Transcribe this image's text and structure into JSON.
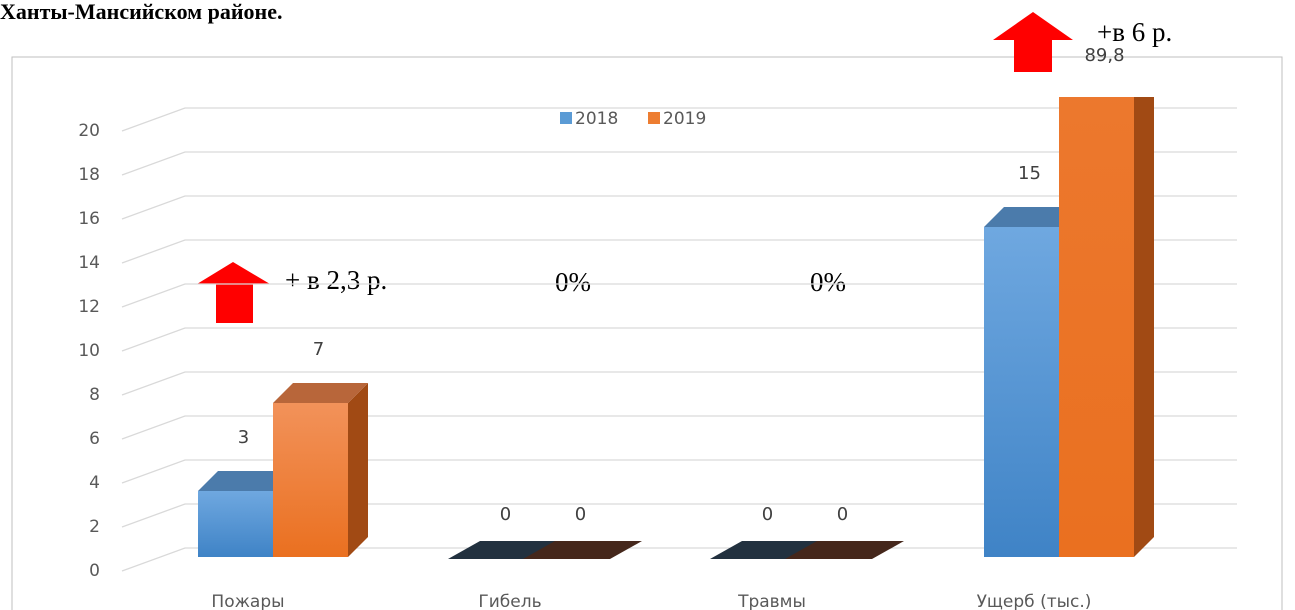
{
  "chart_data": {
    "type": "bar3d",
    "title": "Ханты-Мансийском районе.",
    "categories": [
      "Пожары",
      "Гибель",
      "Травмы",
      "Ущерб (тыс.)"
    ],
    "series": [
      {
        "name": "2018",
        "color": "#5b9bd5",
        "values": [
          3,
          0,
          0,
          15
        ],
        "value_labels": [
          "3",
          "0",
          "0",
          "15"
        ]
      },
      {
        "name": "2019",
        "color": "#ed7d31",
        "values": [
          7,
          0,
          0,
          89.8
        ],
        "value_labels": [
          "7",
          "0",
          "0",
          "89,8"
        ]
      }
    ],
    "ylim": [
      0,
      20
    ],
    "yticks": [
      0,
      2,
      4,
      6,
      8,
      10,
      12,
      14,
      16,
      18,
      20
    ],
    "grid": true,
    "legend": "top",
    "annotations": [
      "+ в 2,3 р.",
      "0%",
      "0%",
      "+в 6 р."
    ]
  }
}
